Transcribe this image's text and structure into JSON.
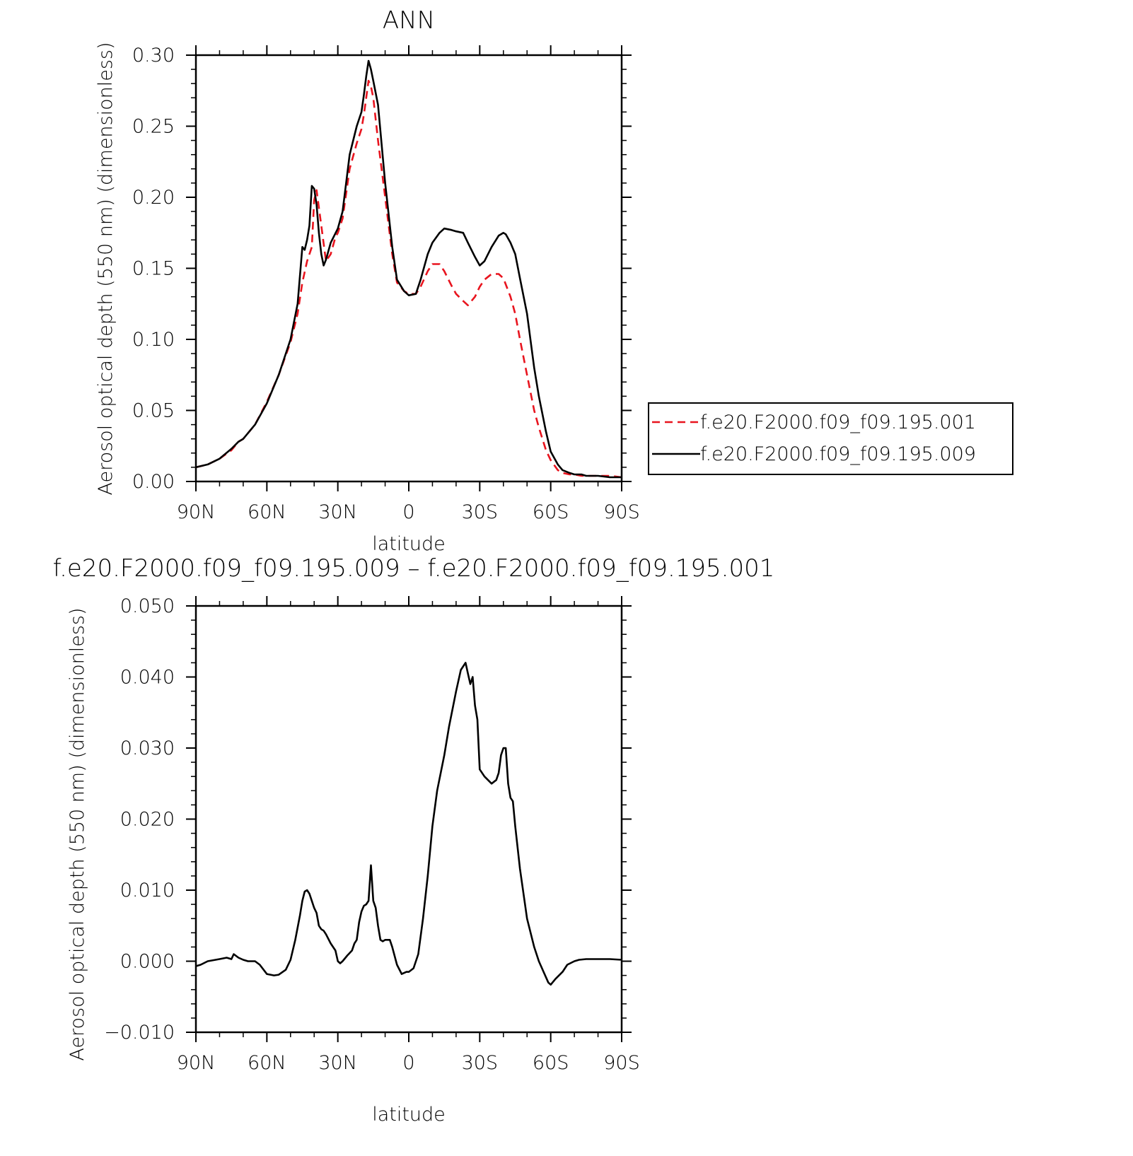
{
  "chart_data": [
    {
      "type": "line",
      "title": "ANN",
      "xlabel": "latitude",
      "ylabel": "Aerosol optical depth (550 nm) (dimensionless)",
      "ylim": [
        0,
        0.3
      ],
      "xlim": [
        90,
        -90
      ],
      "yticks": [
        "0.00",
        "0.05",
        "0.10",
        "0.15",
        "0.20",
        "0.25",
        "0.30"
      ],
      "xtick_labels": [
        "90N",
        "60N",
        "30N",
        "0",
        "30S",
        "60S",
        "90S"
      ],
      "grid": false,
      "legend_position": "right",
      "series": [
        {
          "name": "f.e20.F2000.f09_f09.195.001",
          "color": "#e8141e",
          "style": "dashed",
          "x": [
            90,
            85,
            80,
            75,
            72,
            70,
            65,
            60,
            55,
            50,
            47,
            45,
            43,
            41,
            40,
            39,
            37,
            35,
            33,
            31,
            30,
            28,
            25,
            22,
            20,
            19,
            18,
            17,
            16,
            15,
            13,
            10,
            7,
            5,
            2,
            0,
            -3,
            -5,
            -8,
            -10,
            -13,
            -15,
            -18,
            -20,
            -23,
            -25,
            -28,
            -30,
            -32,
            -35,
            -38,
            -40,
            -43,
            -45,
            -47,
            -50,
            -53,
            -55,
            -58,
            -60,
            -63,
            -65,
            -68,
            -70,
            -73,
            -75,
            -80,
            -85,
            -90
          ],
          "y": [
            0.01,
            0.012,
            0.016,
            0.022,
            0.028,
            0.03,
            0.04,
            0.056,
            0.075,
            0.098,
            0.118,
            0.14,
            0.155,
            0.165,
            0.198,
            0.205,
            0.18,
            0.155,
            0.16,
            0.172,
            0.175,
            0.185,
            0.22,
            0.238,
            0.248,
            0.258,
            0.27,
            0.282,
            0.278,
            0.27,
            0.24,
            0.2,
            0.16,
            0.14,
            0.134,
            0.132,
            0.132,
            0.137,
            0.148,
            0.153,
            0.153,
            0.148,
            0.138,
            0.132,
            0.127,
            0.124,
            0.13,
            0.137,
            0.142,
            0.146,
            0.146,
            0.143,
            0.13,
            0.118,
            0.1,
            0.075,
            0.05,
            0.038,
            0.022,
            0.015,
            0.008,
            0.006,
            0.005,
            0.005,
            0.004,
            0.004,
            0.004,
            0.004,
            0.003
          ]
        },
        {
          "name": "f.e20.F2000.f09_f09.195.009",
          "color": "#000000",
          "style": "solid",
          "x": [
            90,
            85,
            80,
            75,
            72,
            70,
            65,
            60,
            55,
            50,
            47,
            45,
            44,
            43,
            42,
            41,
            40,
            39,
            38,
            37,
            36,
            35,
            33,
            30,
            28,
            25,
            22,
            20,
            19,
            18,
            17,
            16,
            15,
            13,
            10,
            7,
            5,
            2,
            0,
            -3,
            -5,
            -8,
            -10,
            -13,
            -15,
            -18,
            -20,
            -23,
            -25,
            -28,
            -30,
            -32,
            -35,
            -38,
            -40,
            -41,
            -43,
            -45,
            -47,
            -50,
            -53,
            -55,
            -58,
            -60,
            -63,
            -65,
            -68,
            -70,
            -73,
            -75,
            -80,
            -85,
            -90
          ],
          "y": [
            0.01,
            0.012,
            0.016,
            0.023,
            0.028,
            0.03,
            0.04,
            0.055,
            0.075,
            0.1,
            0.125,
            0.165,
            0.163,
            0.17,
            0.18,
            0.208,
            0.206,
            0.195,
            0.175,
            0.16,
            0.152,
            0.156,
            0.168,
            0.178,
            0.19,
            0.23,
            0.25,
            0.26,
            0.272,
            0.285,
            0.296,
            0.29,
            0.282,
            0.265,
            0.21,
            0.165,
            0.142,
            0.134,
            0.131,
            0.132,
            0.142,
            0.16,
            0.168,
            0.175,
            0.178,
            0.177,
            0.176,
            0.175,
            0.168,
            0.158,
            0.152,
            0.155,
            0.165,
            0.173,
            0.175,
            0.174,
            0.168,
            0.16,
            0.143,
            0.118,
            0.08,
            0.06,
            0.035,
            0.021,
            0.012,
            0.008,
            0.006,
            0.005,
            0.005,
            0.004,
            0.004,
            0.003,
            0.003
          ]
        }
      ]
    },
    {
      "type": "line",
      "title": "f.e20.F2000.f09_f09.195.009 – f.e20.F2000.f09_f09.195.001",
      "xlabel": "latitude",
      "ylabel": "Aerosol optical depth (550 nm) (dimensionless)",
      "ylim": [
        -0.01,
        0.05
      ],
      "xlim": [
        90,
        -90
      ],
      "yticks": [
        "−0.010",
        "0.000",
        "0.010",
        "0.020",
        "0.030",
        "0.040",
        "0.050"
      ],
      "xtick_labels": [
        "90N",
        "60N",
        "30N",
        "0",
        "30S",
        "60S",
        "90S"
      ],
      "grid": false,
      "series": [
        {
          "color": "#000000",
          "style": "solid",
          "x": [
            90,
            88,
            85,
            80,
            77,
            75,
            74,
            72,
            70,
            68,
            65,
            63,
            60,
            57,
            55,
            52,
            50,
            48,
            46,
            45,
            44,
            43,
            42,
            40,
            39,
            38,
            37,
            36,
            35,
            33,
            31,
            30,
            29,
            28,
            26,
            24,
            23,
            22,
            21,
            20,
            19,
            18,
            17,
            16,
            15,
            14,
            13,
            12,
            11,
            10,
            8,
            7,
            5,
            3,
            1,
            0,
            -2,
            -4,
            -6,
            -8,
            -10,
            -12,
            -15,
            -17,
            -20,
            -22,
            -24,
            -25,
            -26,
            -27,
            -28,
            -29,
            -30,
            -32,
            -35,
            -37,
            -38,
            -39,
            -40,
            -41,
            -42,
            -43,
            -44,
            -45,
            -47,
            -50,
            -53,
            -55,
            -57,
            -59,
            -60,
            -62,
            -65,
            -67,
            -70,
            -72,
            -75,
            -80,
            -85,
            -90
          ],
          "y": [
            -0.0007,
            -0.0005,
            0.0,
            0.0003,
            0.0005,
            0.0003,
            0.001,
            0.0005,
            0.0002,
            0.0,
            0.0,
            -0.0005,
            -0.0018,
            -0.002,
            -0.0019,
            -0.0012,
            0.0002,
            0.003,
            0.0065,
            0.0085,
            0.0098,
            0.01,
            0.0095,
            0.0075,
            0.0068,
            0.005,
            0.0045,
            0.0043,
            0.0038,
            0.0025,
            0.0015,
            0.0,
            -0.0003,
            0.0,
            0.0008,
            0.0015,
            0.0025,
            0.003,
            0.0055,
            0.007,
            0.0078,
            0.008,
            0.0085,
            0.0135,
            0.0085,
            0.0075,
            0.005,
            0.003,
            0.0028,
            0.003,
            0.003,
            0.002,
            -0.0005,
            -0.0018,
            -0.0015,
            -0.0015,
            -0.001,
            0.001,
            0.006,
            0.012,
            0.019,
            0.024,
            0.029,
            0.033,
            0.038,
            0.041,
            0.042,
            0.0405,
            0.039,
            0.04,
            0.036,
            0.034,
            0.027,
            0.026,
            0.025,
            0.0255,
            0.0265,
            0.029,
            0.03,
            0.03,
            0.025,
            0.023,
            0.0225,
            0.019,
            0.013,
            0.006,
            0.002,
            0.0,
            -0.0015,
            -0.003,
            -0.0033,
            -0.0025,
            -0.0015,
            -0.0005,
            0.0,
            0.0002,
            0.0003,
            0.0003,
            0.0003,
            0.0002
          ]
        }
      ]
    }
  ]
}
